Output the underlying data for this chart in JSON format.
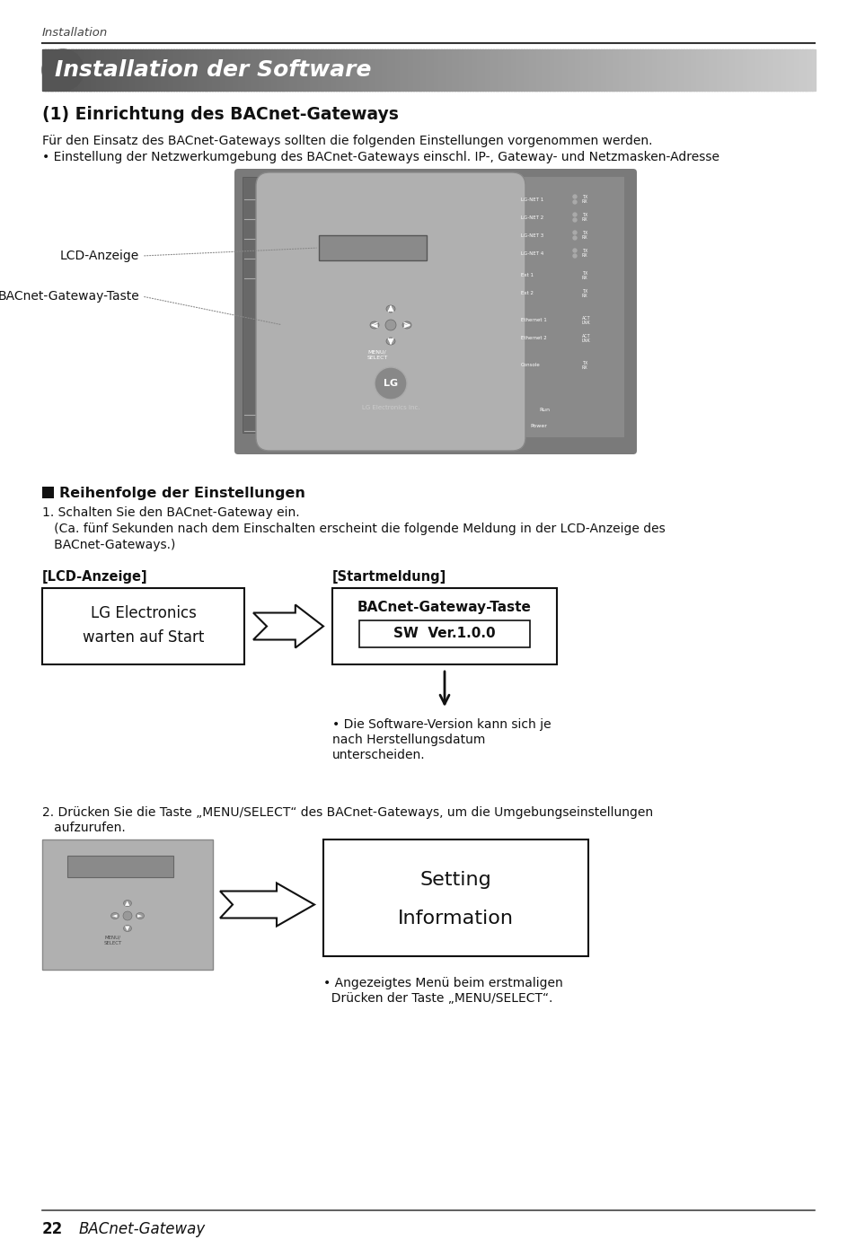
{
  "page_label": "Installation",
  "title_banner": "Installation der Software",
  "section_title": "(1) Einrichtung des BACnet-Gateways",
  "intro_line1": "Für den Einsatz des BACnet-Gateways sollten die folgenden Einstellungen vorgenommen werden.",
  "intro_bullet": "• Einstellung der Netzwerkumgebung des BACnet-Gateways einschl. IP-, Gateway- und Netzmasken-Adresse",
  "label_lcd": "LCD-Anzeige",
  "label_bacnet_taste": "BACnet-Gateway-Taste",
  "section2_title": "Reihenfolge der Einstellungen",
  "step1_line1": "1. Schalten Sie den BACnet-Gateway ein.",
  "step1_line2": "   (Ca. fünf Sekunden nach dem Einschalten erscheint die folgende Meldung in der LCD-Anzeige des",
  "step1_line3": "   BACnet-Gateways.)",
  "lcd_label": "[LCD-Anzeige]",
  "start_label": "[Startmeldung]",
  "box1_line1": "LG Electronics",
  "box1_line2": "warten auf Start",
  "box2_line1": "BACnet-Gateway-Taste",
  "box2_line2": "SW  Ver.1.0.0",
  "note1_line1": "• Die Software-Version kann sich je",
  "note1_line2": "nach Herstellungsdatum",
  "note1_line3": "unterscheiden.",
  "step2_line1": "2. Drücken Sie die Taste „MENU/SELECT“ des BACnet-Gateways, um die Umgebungseinstellungen",
  "step2_line2": "   aufzurufen.",
  "box3_line1": "Setting",
  "box3_line2": "Information",
  "note2_line1": "• Angezeigtes Menü beim erstmaligen",
  "note2_line2": "  Drücken der Taste „MENU/SELECT“.",
  "footer_num": "22",
  "footer_text": "BACnet-Gateway",
  "bg_color": "#ffffff",
  "text_color": "#111111"
}
